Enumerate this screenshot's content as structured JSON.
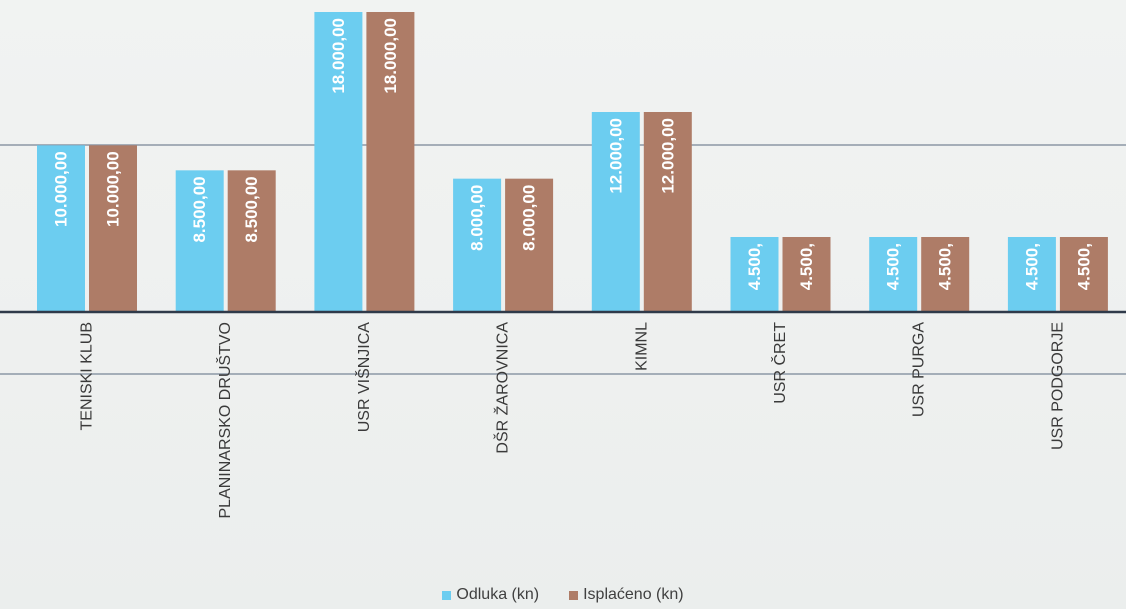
{
  "colors": {
    "odluka": "#6ccdf0",
    "isplaceno": "#ae7c67"
  },
  "chart_data": {
    "type": "bar",
    "categories": [
      "TENISKI KLUB",
      "PLANINARSKO DRUŠTVO",
      "USR VIŠNJICA",
      "DŠR ŽAROVNICA",
      "KIMNL",
      "USR ČRET",
      "USR PURGA",
      "USR PODGORJE"
    ],
    "series": [
      {
        "name": "Odluka (kn)",
        "values": [
          10000,
          8500,
          18000,
          8000,
          12000,
          4500,
          4500,
          4500
        ],
        "labels": [
          "10.000,00",
          "8.500,00",
          "18.000,00",
          "8.000,00",
          "12.000,00",
          "4.500,",
          "4.500,",
          "4.500,"
        ]
      },
      {
        "name": "Isplaćeno (kn)",
        "values": [
          10000,
          8500,
          18000,
          8000,
          12000,
          4500,
          4500,
          4500
        ],
        "labels": [
          "10.000,00",
          "8.500,00",
          "18.000,00",
          "8.000,00",
          "12.000,00",
          "4.500,",
          "4.500,",
          "4.500,"
        ]
      }
    ],
    "ylim": [
      0,
      18000
    ],
    "grid": true,
    "legend_position": "bottom"
  }
}
